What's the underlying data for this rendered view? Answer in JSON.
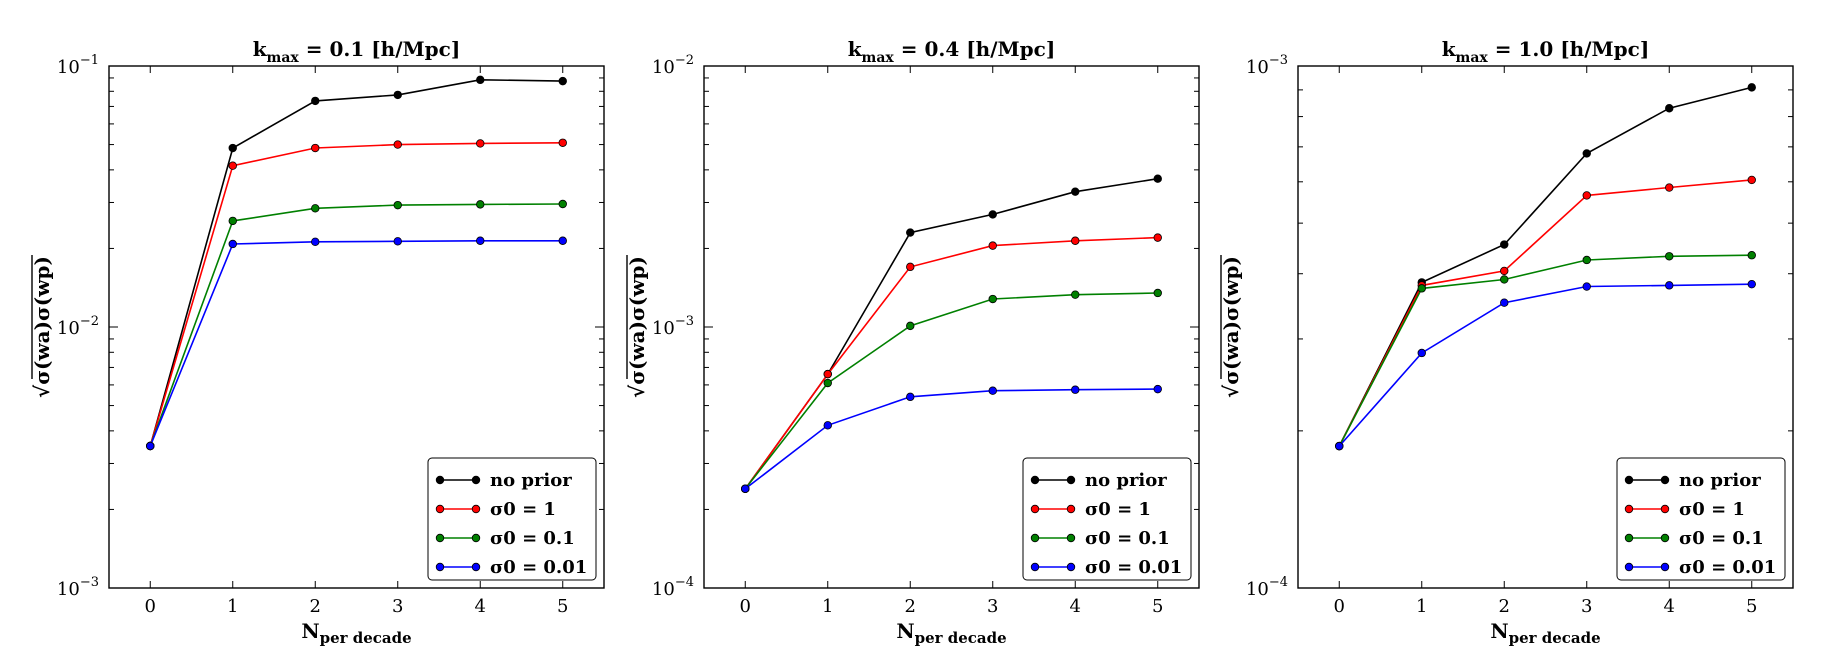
{
  "chart_data": [
    {
      "type": "line",
      "title_main": "k",
      "title_sub": "max",
      "title_rest": " = 0.1 [h/Mpc]",
      "xlabel_main": "N",
      "xlabel_sub": "per decade",
      "ylabel": "√σ(wa)σ(wp)",
      "yscale": "log",
      "ylim": [
        0.001,
        0.1
      ],
      "ytick_labels": [
        {
          "base": "10",
          "exp": "−1"
        },
        {
          "base": "10",
          "exp": "−2"
        },
        {
          "base": "10",
          "exp": "−3"
        }
      ],
      "ytick_values": [
        0.1,
        0.01,
        0.001
      ],
      "x": [
        0,
        1,
        2,
        3,
        4,
        5
      ],
      "xtick_labels": [
        "0",
        "1",
        "2",
        "3",
        "4",
        "5"
      ],
      "xlim": [
        -0.5,
        5.5
      ],
      "series": [
        {
          "name": "no prior",
          "color": "#000000",
          "values": [
            0.0035,
            0.0485,
            0.0735,
            0.0775,
            0.0885,
            0.0875
          ]
        },
        {
          "name": "σ0 = 1",
          "color": "#ff0000",
          "values": [
            0.0035,
            0.0415,
            0.0485,
            0.05,
            0.0505,
            0.0508
          ]
        },
        {
          "name": "σ0 = 0.1",
          "color": "#008000",
          "values": [
            0.0035,
            0.0255,
            0.0285,
            0.0293,
            0.0295,
            0.0296
          ]
        },
        {
          "name": "σ0 = 0.01",
          "color": "#0000ff",
          "values": [
            0.0035,
            0.0208,
            0.0212,
            0.0213,
            0.0214,
            0.0214
          ]
        }
      ],
      "legend_location": "lower-right"
    },
    {
      "type": "line",
      "title_main": "k",
      "title_sub": "max",
      "title_rest": " = 0.4 [h/Mpc]",
      "xlabel_main": "N",
      "xlabel_sub": "per decade",
      "ylabel": "√σ(wa)σ(wp)",
      "yscale": "log",
      "ylim": [
        0.0001,
        0.01
      ],
      "ytick_labels": [
        {
          "base": "10",
          "exp": "−2"
        },
        {
          "base": "10",
          "exp": "−3"
        },
        {
          "base": "10",
          "exp": "−4"
        }
      ],
      "ytick_values": [
        0.01,
        0.001,
        0.0001
      ],
      "x": [
        0,
        1,
        2,
        3,
        4,
        5
      ],
      "xtick_labels": [
        "0",
        "1",
        "2",
        "3",
        "4",
        "5"
      ],
      "xlim": [
        -0.5,
        5.5
      ],
      "series": [
        {
          "name": "no prior",
          "color": "#000000",
          "values": [
            0.00024,
            0.00066,
            0.0023,
            0.0027,
            0.0033,
            0.0037
          ]
        },
        {
          "name": "σ0 = 1",
          "color": "#ff0000",
          "values": [
            0.00024,
            0.00066,
            0.0017,
            0.00205,
            0.00214,
            0.0022
          ]
        },
        {
          "name": "σ0 = 0.1",
          "color": "#008000",
          "values": [
            0.00024,
            0.00061,
            0.00101,
            0.00128,
            0.00133,
            0.00135
          ]
        },
        {
          "name": "σ0 = 0.01",
          "color": "#0000ff",
          "values": [
            0.00024,
            0.00042,
            0.00054,
            0.00057,
            0.000575,
            0.000578
          ]
        }
      ],
      "legend_location": "lower-right"
    },
    {
      "type": "line",
      "title_main": "k",
      "title_sub": "max",
      "title_rest": " = 1.0 [h/Mpc]",
      "xlabel_main": "N",
      "xlabel_sub": "per decade",
      "ylabel": "√σ(wa)σ(wp)",
      "yscale": "log",
      "ylim": [
        0.0001,
        0.001
      ],
      "ytick_labels": [
        {
          "base": "10",
          "exp": "−3"
        },
        {
          "base": "10",
          "exp": "−4"
        }
      ],
      "ytick_values": [
        0.001,
        0.0001
      ],
      "x": [
        0,
        1,
        2,
        3,
        4,
        5
      ],
      "xtick_labels": [
        "0",
        "1",
        "2",
        "3",
        "4",
        "5"
      ],
      "xlim": [
        -0.5,
        5.5
      ],
      "series": [
        {
          "name": "no prior",
          "color": "#000000",
          "values": [
            0.000187,
            0.000385,
            0.000455,
            0.00068,
            0.00083,
            0.00091
          ]
        },
        {
          "name": "σ0 = 1",
          "color": "#ff0000",
          "values": [
            0.000187,
            0.00038,
            0.000405,
            0.000565,
            0.000585,
            0.000605
          ]
        },
        {
          "name": "σ0 = 0.1",
          "color": "#008000",
          "values": [
            0.000187,
            0.000375,
            0.00039,
            0.000425,
            0.000432,
            0.000434
          ]
        },
        {
          "name": "σ0 = 0.01",
          "color": "#0000ff",
          "values": [
            0.000187,
            0.000282,
            0.000352,
            0.000378,
            0.00038,
            0.000382
          ]
        }
      ],
      "legend_location": "lower-right"
    }
  ]
}
